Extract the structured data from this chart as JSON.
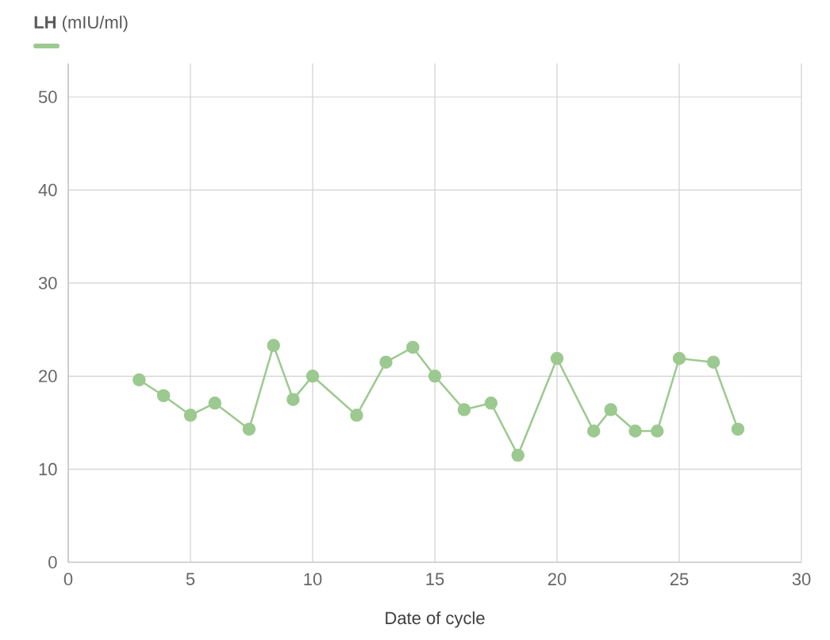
{
  "chart_data": {
    "type": "line",
    "xlabel": "Date of cycle",
    "legend": "top left",
    "grid": true,
    "marker": "circle",
    "line_style": "solid",
    "xlim": [
      0,
      30
    ],
    "xticks": [
      0,
      5,
      10,
      15,
      20,
      25,
      30
    ],
    "ylim": [
      0,
      53.6
    ],
    "yticks": [
      0,
      10,
      20,
      30,
      40,
      50
    ],
    "series": [
      {
        "name": "**LH** (mIU/ml)",
        "color": "#9cc98f",
        "x": [
          2.9,
          3.9,
          5.0,
          6.0,
          7.4,
          8.4,
          9.2,
          10.0,
          11.8,
          13.0,
          14.1,
          15.0,
          16.2,
          17.3,
          18.4,
          20.0,
          21.5,
          22.2,
          23.2,
          24.1,
          25.0,
          26.4,
          27.4
        ],
        "values": [
          19.6,
          17.9,
          15.8,
          17.1,
          14.3,
          23.3,
          17.5,
          20.0,
          15.8,
          21.5,
          23.1,
          20.0,
          16.4,
          17.1,
          11.5,
          21.9,
          14.1,
          16.4,
          14.1,
          14.1,
          21.9,
          21.5,
          14.3
        ]
      }
    ]
  }
}
